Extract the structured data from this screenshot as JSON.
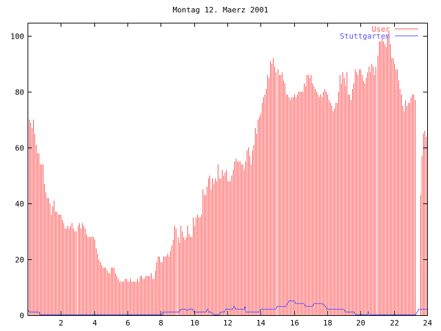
{
  "chart_data": {
    "type": "bar",
    "title": "Montag 12. Maerz 2001",
    "xlabel": "",
    "ylabel": "",
    "xlim": [
      0,
      24
    ],
    "ylim": [
      0,
      104.7
    ],
    "xticks": [
      2,
      4,
      6,
      8,
      10,
      12,
      14,
      16,
      18,
      20,
      22,
      24
    ],
    "yticks": [
      0,
      20,
      40,
      60,
      80,
      100
    ],
    "grid": false,
    "legend_position": "top-right",
    "colors": {
      "User": "#ff5555",
      "Stuttgarten": "#5555ff",
      "axis": "#000000"
    },
    "series": [
      {
        "name": "User",
        "style": "impulses",
        "interval_minutes": 5,
        "values": [
          69,
          70,
          69,
          67,
          70,
          65,
          61,
          58,
          58,
          54,
          54,
          54,
          47,
          44,
          42,
          42,
          40,
          36,
          39,
          41,
          37,
          37,
          36,
          36,
          36,
          34,
          33,
          31,
          31,
          32,
          31,
          32,
          33,
          31,
          30,
          30,
          32,
          33,
          31,
          33,
          32,
          31,
          29,
          28,
          28,
          28,
          28,
          28,
          27,
          24,
          22,
          20,
          19,
          18,
          17,
          17,
          17,
          16,
          15,
          15,
          17,
          17,
          17,
          15,
          14,
          13,
          12,
          12,
          12,
          12,
          13,
          13,
          12,
          12,
          13,
          12,
          12,
          12,
          12,
          13,
          12,
          14,
          14,
          13,
          13,
          14,
          14,
          14,
          14,
          15,
          13,
          13,
          16,
          19,
          21,
          21,
          19,
          19,
          21,
          21,
          21,
          22,
          21,
          23,
          25,
          27,
          32,
          31,
          28,
          26,
          32,
          30,
          28,
          27,
          28,
          32,
          29,
          28,
          28,
          35,
          32,
          35,
          36,
          35,
          35,
          36,
          45,
          43,
          43,
          46,
          49,
          50,
          45,
          49,
          47,
          49,
          48,
          54,
          49,
          49,
          52,
          50,
          51,
          52,
          48,
          48,
          48,
          50,
          52,
          55,
          56,
          55,
          55,
          55,
          54,
          54,
          52,
          55,
          59,
          60,
          57,
          54,
          59,
          61,
          67,
          65,
          70,
          71,
          72,
          76,
          78,
          79,
          81,
          86,
          85,
          91,
          90,
          92,
          89,
          87,
          88,
          86,
          86,
          87,
          84,
          83,
          79,
          79,
          78,
          77,
          78,
          78,
          79,
          78,
          79,
          80,
          80,
          80,
          80,
          83,
          82,
          86,
          86,
          85,
          86,
          83,
          82,
          81,
          80,
          79,
          78,
          79,
          78,
          80,
          81,
          80,
          79,
          77,
          76,
          75,
          73,
          74,
          76,
          76,
          80,
          86,
          83,
          87,
          85,
          82,
          87,
          79,
          79,
          77,
          81,
          83,
          88,
          87,
          86,
          88,
          88,
          86,
          84,
          83,
          85,
          87,
          89,
          87,
          90,
          89,
          86,
          89,
          93,
          98,
          98,
          99,
          98,
          97,
          96,
          100,
          102,
          97,
          92,
          92,
          90,
          88,
          88,
          84,
          81,
          79,
          75,
          73,
          77,
          75,
          76,
          76,
          78,
          79,
          79,
          77,
          0,
          0,
          0,
          43,
          57,
          65,
          66,
          64
        ]
      },
      {
        "name": "Stuttgarten",
        "style": "steps",
        "points": [
          [
            0,
            2
          ],
          [
            0.1,
            1
          ],
          [
            0.7,
            1
          ],
          [
            0.75,
            0
          ],
          [
            8.1,
            0
          ],
          [
            8.15,
            1
          ],
          [
            9.1,
            1
          ],
          [
            9.2,
            2
          ],
          [
            9.5,
            2
          ],
          [
            9.6,
            1.5
          ],
          [
            9.7,
            2
          ],
          [
            9.9,
            2
          ],
          [
            10.0,
            1
          ],
          [
            10.7,
            1
          ],
          [
            10.8,
            2
          ],
          [
            10.9,
            1
          ],
          [
            11.0,
            1
          ],
          [
            11.1,
            0.5
          ],
          [
            11.2,
            0
          ],
          [
            11.5,
            0
          ],
          [
            11.6,
            1
          ],
          [
            11.8,
            1
          ],
          [
            11.9,
            2
          ],
          [
            12.3,
            2
          ],
          [
            12.4,
            3
          ],
          [
            12.5,
            2
          ],
          [
            13.0,
            2
          ],
          [
            13.05,
            3
          ],
          [
            13.1,
            1
          ],
          [
            13.9,
            1
          ],
          [
            14.0,
            2
          ],
          [
            14.9,
            2
          ],
          [
            15.0,
            3
          ],
          [
            15.5,
            3
          ],
          [
            15.6,
            4
          ],
          [
            15.7,
            5
          ],
          [
            16.0,
            5
          ],
          [
            16.1,
            4
          ],
          [
            16.6,
            4
          ],
          [
            16.7,
            3
          ],
          [
            17.1,
            3
          ],
          [
            17.2,
            4
          ],
          [
            17.7,
            4
          ],
          [
            17.9,
            3
          ],
          [
            18.0,
            2
          ],
          [
            19.0,
            2
          ],
          [
            19.1,
            1
          ],
          [
            19.6,
            1
          ],
          [
            19.7,
            0
          ],
          [
            20.4,
            0
          ],
          [
            20.45,
            1
          ],
          [
            20.5,
            0
          ],
          [
            23.3,
            0
          ],
          [
            23.5,
            2
          ],
          [
            24,
            2
          ]
        ]
      }
    ]
  }
}
